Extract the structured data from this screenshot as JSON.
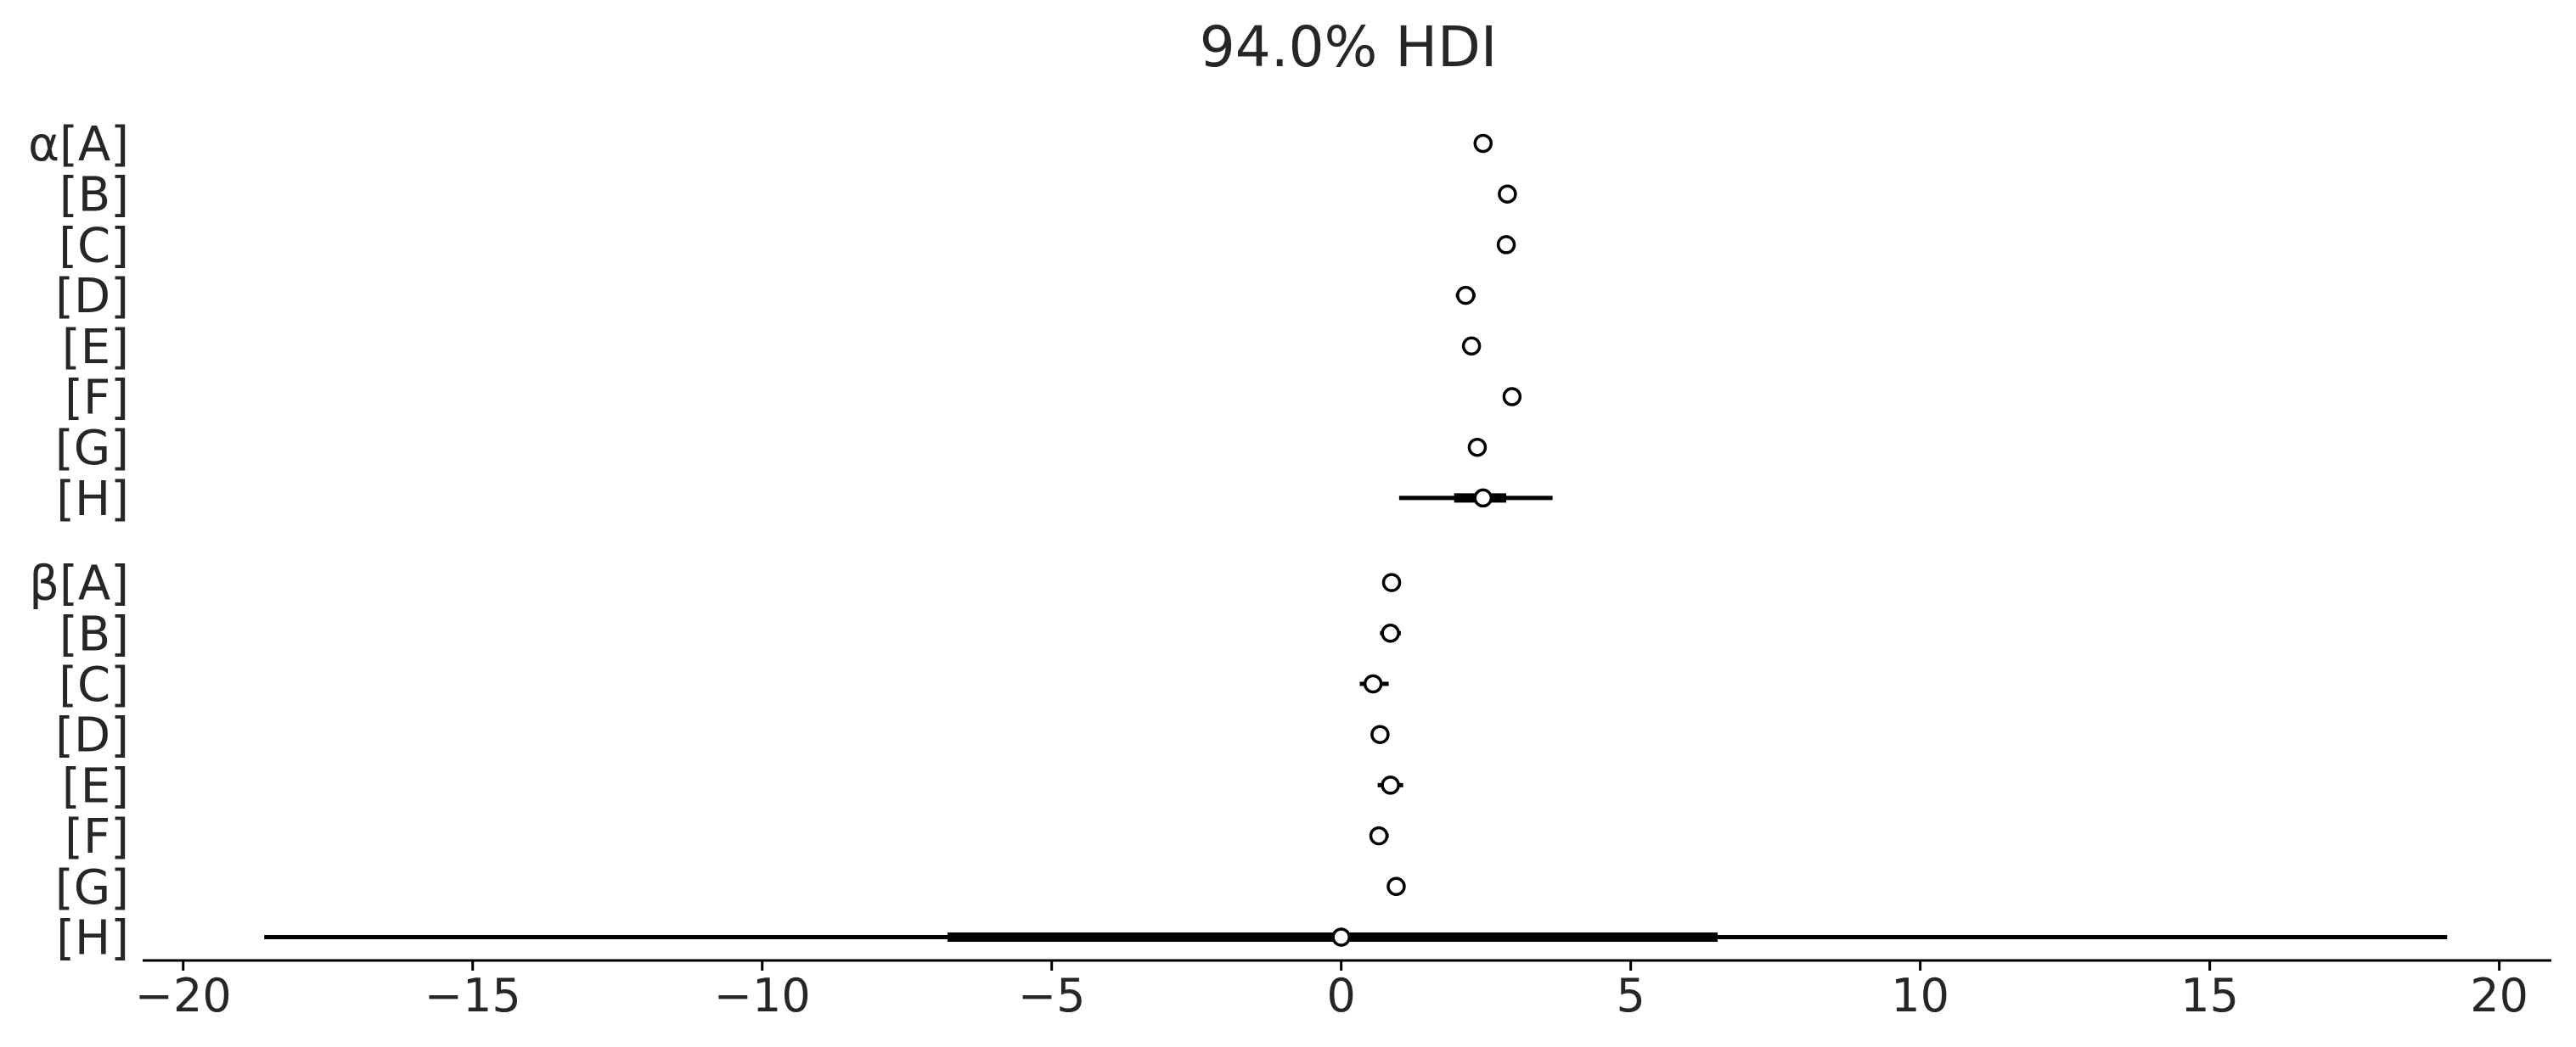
{
  "chart_data": {
    "type": "forest",
    "title": "94.0% HDI",
    "x_ticks": [
      -20,
      -15,
      -10,
      -5,
      0,
      5,
      10,
      15,
      20
    ],
    "x_tick_labels": [
      "−20",
      "−15",
      "−10",
      "−5",
      "0",
      "5",
      "10",
      "15",
      "20"
    ],
    "xlim": [
      -20.7,
      20.9
    ],
    "grid": false,
    "legend": "none",
    "colors": {
      "line": "#000000",
      "marker_fill": "#ffffff",
      "text": "#262626"
    },
    "rows": [
      {
        "label": "α[A]",
        "mean": 2.45,
        "hdi_50": [
          2.4,
          2.5
        ],
        "hdi_94": [
          2.35,
          2.57
        ]
      },
      {
        "label": "[B]",
        "mean": 2.87,
        "hdi_50": [
          2.82,
          2.92
        ],
        "hdi_94": [
          2.75,
          2.98
        ]
      },
      {
        "label": "[C]",
        "mean": 2.85,
        "hdi_50": [
          2.8,
          2.9
        ],
        "hdi_94": [
          2.72,
          2.98
        ]
      },
      {
        "label": "[D]",
        "mean": 2.15,
        "hdi_50": [
          2.08,
          2.22
        ],
        "hdi_94": [
          1.98,
          2.32
        ]
      },
      {
        "label": "[E]",
        "mean": 2.25,
        "hdi_50": [
          2.19,
          2.31
        ],
        "hdi_94": [
          2.1,
          2.4
        ]
      },
      {
        "label": "[F]",
        "mean": 2.95,
        "hdi_50": [
          2.9,
          3.0
        ],
        "hdi_94": [
          2.82,
          3.08
        ]
      },
      {
        "label": "[G]",
        "mean": 2.35,
        "hdi_50": [
          2.29,
          2.41
        ],
        "hdi_94": [
          2.22,
          2.48
        ]
      },
      {
        "label": "[H]",
        "mean": 2.45,
        "hdi_50": [
          1.95,
          2.85
        ],
        "hdi_94": [
          1.0,
          3.65
        ]
      },
      {
        "label": "β[A]",
        "mean": 0.87,
        "hdi_50": [
          0.82,
          0.92
        ],
        "hdi_94": [
          0.76,
          0.98
        ]
      },
      {
        "label": "[B]",
        "mean": 0.85,
        "hdi_50": [
          0.78,
          0.92
        ],
        "hdi_94": [
          0.67,
          1.03
        ]
      },
      {
        "label": "[C]",
        "mean": 0.55,
        "hdi_50": [
          0.46,
          0.64
        ],
        "hdi_94": [
          0.32,
          0.82
        ]
      },
      {
        "label": "[D]",
        "mean": 0.67,
        "hdi_50": [
          0.62,
          0.72
        ],
        "hdi_94": [
          0.55,
          0.8
        ]
      },
      {
        "label": "[E]",
        "mean": 0.85,
        "hdi_50": [
          0.77,
          0.93
        ],
        "hdi_94": [
          0.63,
          1.07
        ]
      },
      {
        "label": "[F]",
        "mean": 0.65,
        "hdi_50": [
          0.59,
          0.71
        ],
        "hdi_94": [
          0.5,
          0.82
        ]
      },
      {
        "label": "[G]",
        "mean": 0.95,
        "hdi_50": [
          0.91,
          0.99
        ],
        "hdi_94": [
          0.85,
          1.06
        ]
      },
      {
        "label": "[H]",
        "mean": 0.0,
        "hdi_50": [
          -6.8,
          6.5
        ],
        "hdi_94": [
          -18.6,
          19.1
        ]
      }
    ]
  }
}
